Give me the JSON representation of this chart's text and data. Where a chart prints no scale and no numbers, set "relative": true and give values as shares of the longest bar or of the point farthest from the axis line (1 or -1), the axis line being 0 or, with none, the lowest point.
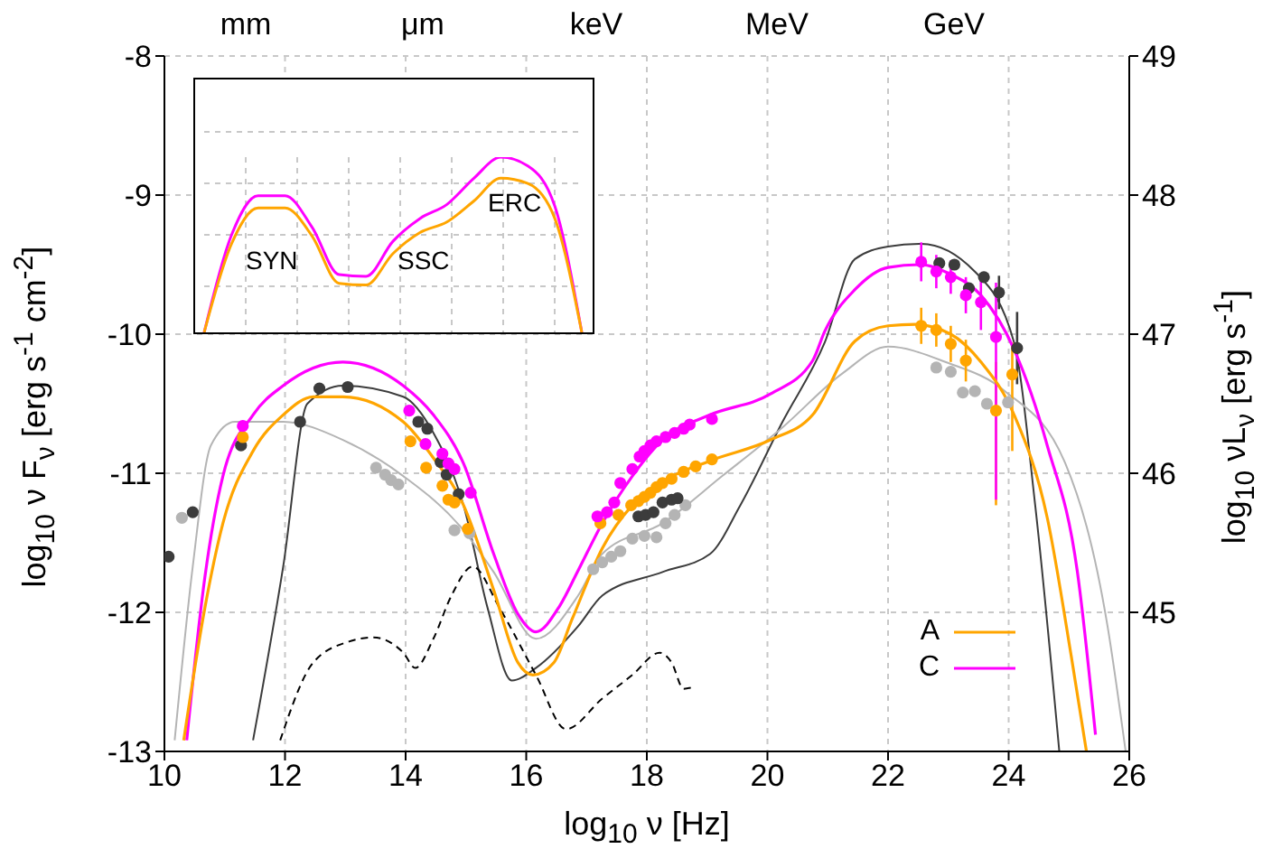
{
  "chart_data": [
    {
      "type": "line",
      "xlabel": "log$_{10}$ ν [Hz]",
      "ylabel": "log$_{10}$ ν F$_{ν}$ [erg s$^{-1}$ cm$^{-2}$]",
      "y2label": "log$_{10}$ νL$_{ν}$ [erg s$^{-1}$]",
      "xlim": [
        10,
        26
      ],
      "xticks": [
        10,
        12,
        14,
        16,
        18,
        20,
        22,
        24,
        26
      ],
      "ylim": [
        -13,
        -8
      ],
      "yticks": [
        -13,
        -12,
        -11,
        -10,
        -9,
        -8
      ],
      "y2lim": [
        44,
        49
      ],
      "y2ticks": [
        45,
        46,
        47,
        48,
        49
      ],
      "annotations": [
        "mm",
        "μm",
        "keV",
        "MeV",
        "GeV"
      ],
      "grid": true,
      "legend": "bottom right",
      "series": [
        {
          "type": "line",
          "name": "A",
          "color": "#ffa500",
          "x": [
            10.32,
            10.67,
            10.97,
            11.47,
            11.97,
            12.47,
            12.96,
            13.96,
            14.46,
            14.96,
            15.46,
            15.86,
            16.11,
            16.46,
            16.76,
            17.26,
            17.76,
            18.26,
            19.05,
            20.05,
            20.75,
            21.45,
            22.0,
            22.45,
            23.04,
            23.54,
            24.09,
            24.64,
            25.04,
            25.29
          ],
          "values": [
            -12.92,
            -11.97,
            -11.36,
            -10.84,
            -10.58,
            -10.45,
            -10.45,
            -10.63,
            -10.89,
            -11.23,
            -11.84,
            -12.36,
            -12.45,
            -12.36,
            -12.05,
            -11.54,
            -11.23,
            -11.06,
            -10.91,
            -10.76,
            -10.58,
            -10.05,
            -9.94,
            -9.93,
            -10.0,
            -10.2,
            -10.58,
            -11.32,
            -12.32,
            -13.0
          ]
        },
        {
          "type": "line",
          "name": "C",
          "color": "#ff00ff",
          "x": [
            10.37,
            10.67,
            10.97,
            11.47,
            11.97,
            12.96,
            13.96,
            14.46,
            14.96,
            15.46,
            15.86,
            16.16,
            16.56,
            16.86,
            17.26,
            17.76,
            18.26,
            19.05,
            20.05,
            20.75,
            20.95,
            21.45,
            22.0,
            22.55,
            23.04,
            23.54,
            24.09,
            24.64,
            25.14,
            25.44
          ],
          "values": [
            -12.92,
            -11.75,
            -11.02,
            -10.58,
            -10.37,
            -10.2,
            -10.37,
            -10.58,
            -10.93,
            -11.58,
            -12.01,
            -12.14,
            -11.95,
            -11.7,
            -11.36,
            -11.02,
            -10.76,
            -10.58,
            -10.43,
            -10.19,
            -9.98,
            -9.68,
            -9.52,
            -9.5,
            -9.57,
            -9.72,
            -10.11,
            -10.8,
            -11.71,
            -12.88
          ]
        },
        {
          "type": "line",
          "color": "#3c3c3c",
          "x": [
            11.47,
            11.97,
            12.37,
            12.96,
            13.96,
            14.46,
            14.96,
            15.36,
            15.76,
            16.16,
            16.86,
            17.26,
            18.26,
            19.05,
            19.55,
            20.25,
            20.95,
            21.45,
            22.0,
            22.55,
            23.44,
            24.09,
            24.44,
            24.84
          ],
          "values": [
            -12.92,
            -11.67,
            -10.5,
            -10.37,
            -10.45,
            -10.71,
            -11.23,
            -11.97,
            -12.49,
            -12.4,
            -12.1,
            -11.88,
            -11.71,
            -11.58,
            -11.23,
            -10.63,
            -10.06,
            -9.46,
            -9.37,
            -9.35,
            -9.55,
            -10.06,
            -11.23,
            -13.0
          ]
        },
        {
          "type": "line",
          "color": "#b4b4b4",
          "x": [
            10.17,
            10.47,
            10.77,
            11.17,
            11.97,
            12.96,
            13.96,
            14.96,
            15.46,
            16.16,
            16.86,
            17.26,
            18.26,
            19.25,
            20.25,
            21.25,
            22.0,
            22.95,
            23.94,
            24.94,
            25.64,
            25.94
          ],
          "values": [
            -12.92,
            -11.67,
            -10.8,
            -10.63,
            -10.63,
            -10.76,
            -11.02,
            -11.41,
            -11.71,
            -12.19,
            -11.88,
            -11.58,
            -11.36,
            -11.02,
            -10.67,
            -10.28,
            -10.09,
            -10.2,
            -10.41,
            -10.93,
            -12.1,
            -13.0
          ]
        },
        {
          "type": "line",
          "color": "#000000",
          "line_style": "dashed",
          "x": [
            11.92,
            12.47,
            13.06,
            13.46,
            13.96,
            14.16,
            14.46,
            14.76,
            15.11,
            15.56,
            16.16,
            16.66,
            17.26,
            17.76,
            18.21,
            18.41,
            18.61,
            18.81
          ],
          "values": [
            -12.92,
            -12.36,
            -12.21,
            -12.18,
            -12.29,
            -12.4,
            -12.19,
            -11.88,
            -11.67,
            -11.97,
            -12.45,
            -12.84,
            -12.62,
            -12.45,
            -12.29,
            -12.36,
            -12.55,
            -12.53
          ]
        },
        {
          "type": "scatter",
          "marker": "circle",
          "color": "#ff00ff",
          "x": [
            11.3,
            14.06,
            14.33,
            14.61,
            14.71,
            14.81,
            15.08,
            17.18,
            17.34,
            17.46,
            17.56,
            17.76,
            17.88,
            17.96,
            18.06,
            18.16,
            18.31,
            18.46,
            18.61,
            18.71,
            19.08,
            22.55,
            22.8,
            23.04,
            23.29,
            23.54,
            23.79
          ],
          "values": [
            -10.66,
            -10.55,
            -10.79,
            -10.86,
            -10.93,
            -10.97,
            -11.14,
            -11.31,
            -11.28,
            -11.21,
            -11.07,
            -10.97,
            -10.88,
            -10.84,
            -10.8,
            -10.77,
            -10.74,
            -10.71,
            -10.68,
            -10.65,
            -10.61,
            -9.48,
            -9.55,
            -9.59,
            -9.72,
            -9.77,
            -10.02
          ],
          "errors": [
            null,
            null,
            null,
            null,
            null,
            null,
            null,
            null,
            null,
            null,
            null,
            null,
            null,
            null,
            null,
            null,
            null,
            null,
            null,
            null,
            null,
            0.14,
            0.12,
            0.12,
            0.13,
            0.2,
            [
              -11.19,
              -9.63
            ]
          ]
        },
        {
          "type": "scatter",
          "marker": "circle",
          "color": "#ffa500",
          "x": [
            11.3,
            14.08,
            14.34,
            14.61,
            14.71,
            14.81,
            15.03,
            17.23,
            17.53,
            17.74,
            17.86,
            17.96,
            18.06,
            18.16,
            18.26,
            18.41,
            18.61,
            18.81,
            19.08,
            22.55,
            22.8,
            23.04,
            23.29,
            23.79,
            24.06
          ],
          "values": [
            -10.74,
            -10.77,
            -10.96,
            -11.09,
            -11.19,
            -11.21,
            -11.4,
            -11.36,
            -11.3,
            -11.23,
            -11.2,
            -11.17,
            -11.14,
            -11.1,
            -11.07,
            -11.04,
            -10.99,
            -10.95,
            -10.9,
            -9.94,
            -9.97,
            -10.07,
            -10.19,
            -10.55,
            -10.29
          ],
          "errors": [
            null,
            null,
            null,
            null,
            null,
            null,
            null,
            null,
            null,
            null,
            null,
            null,
            null,
            null,
            null,
            null,
            null,
            null,
            null,
            0.13,
            0.12,
            0.13,
            0.15,
            [
              -11.23,
              -10.2
            ],
            [
              -10.84,
              -10.06
            ]
          ]
        },
        {
          "type": "scatter",
          "marker": "circle",
          "color": "#3c3c3c",
          "x": [
            10.07,
            10.47,
            11.27,
            12.25,
            12.57,
            13.04,
            14.21,
            14.36,
            14.58,
            14.68,
            14.88,
            17.86,
            17.98,
            18.11,
            18.26,
            18.41,
            18.51,
            22.85,
            23.1,
            23.34,
            23.59,
            23.84,
            24.14
          ],
          "values": [
            -11.6,
            -11.28,
            -10.8,
            -10.63,
            -10.39,
            -10.38,
            -10.63,
            -10.68,
            -10.92,
            -11.01,
            -11.15,
            -11.31,
            -11.3,
            -11.28,
            -11.21,
            -11.19,
            -11.18,
            -9.49,
            -9.5,
            -9.67,
            -9.59,
            -9.7,
            -10.1
          ],
          "errors": [
            null,
            null,
            null,
            null,
            null,
            null,
            null,
            null,
            null,
            null,
            null,
            null,
            null,
            null,
            null,
            null,
            null,
            null,
            null,
            null,
            null,
            0.12,
            0.26
          ]
        },
        {
          "type": "scatter",
          "marker": "circle",
          "color": "#b4b4b4",
          "x": [
            10.29,
            13.51,
            13.66,
            13.76,
            13.88,
            14.81,
            15.06,
            17.11,
            17.26,
            17.41,
            17.56,
            17.76,
            17.96,
            18.16,
            18.31,
            18.46,
            18.64,
            22.8,
            23.04,
            23.24,
            23.44,
            23.64,
            23.99
          ],
          "values": [
            -11.32,
            -10.96,
            -11.01,
            -11.05,
            -11.08,
            -11.41,
            -11.43,
            -11.69,
            -11.64,
            -11.6,
            -11.56,
            -11.47,
            -11.45,
            -11.46,
            -11.36,
            -11.3,
            -11.23,
            -10.24,
            -10.27,
            -10.42,
            -10.41,
            -10.5,
            -10.49
          ]
        }
      ]
    },
    {
      "type": "line",
      "relative": true,
      "grid": true,
      "categories": [
        null,
        null,
        null,
        null,
        null,
        null,
        null,
        null,
        null,
        null,
        null,
        null,
        null,
        null,
        null
      ],
      "annotations": [
        "SYN",
        "SSC",
        "ERC"
      ],
      "series": [
        {
          "color": "#ff00ff",
          "values": [
            0,
            0.55,
            0.78,
            0.78,
            0.6,
            0.33,
            0.32,
            0.52,
            0.65,
            0.73,
            0.88,
            1.0,
            0.95,
            0.72,
            0
          ]
        },
        {
          "color": "#ffa500",
          "values": [
            0,
            0.5,
            0.71,
            0.71,
            0.55,
            0.28,
            0.27,
            0.45,
            0.57,
            0.63,
            0.75,
            0.88,
            0.85,
            0.65,
            0
          ]
        }
      ]
    }
  ]
}
